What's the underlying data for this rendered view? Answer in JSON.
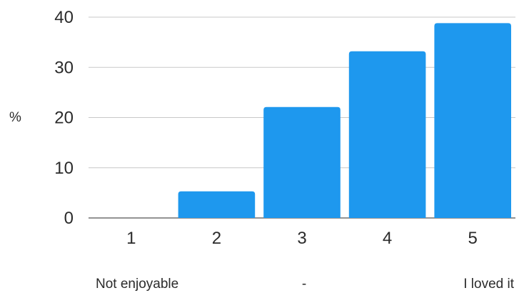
{
  "chart_data": {
    "type": "bar",
    "categories": [
      "1",
      "2",
      "3",
      "4",
      "5"
    ],
    "values": [
      0,
      5.3,
      22.1,
      33.2,
      38.8
    ],
    "title": "",
    "xlabel": "",
    "ylabel": "%",
    "ylim": [
      0,
      40
    ],
    "yticks": [
      "0",
      "10",
      "20",
      "30",
      "40"
    ],
    "grid": true,
    "bar_color": "#1e98ee",
    "grid_color": "#c8c8c8",
    "scale_labels": {
      "left": "Not enjoyable",
      "middle": "-",
      "right": "I loved it"
    }
  }
}
